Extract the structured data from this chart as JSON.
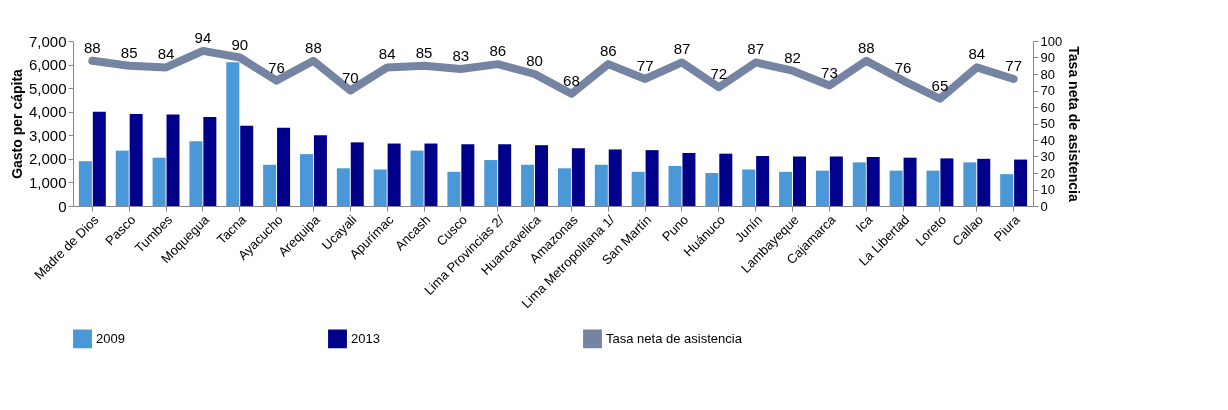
{
  "chart_data": {
    "type": "bar",
    "categories": [
      "Madre de Dios",
      "Pasco",
      "Tumbes",
      "Moquegua",
      "Tacna",
      "Ayacucho",
      "Arequipa",
      "Ucayali",
      "Apurímac",
      "Ancash",
      "Cusco",
      "Lima Provincias 2/",
      "Huancavelica",
      "Amazonas",
      "Lima Metropolitana 1/",
      "San Martín",
      "Puno",
      "Huánuco",
      "Junín",
      "Lambayeque",
      "Cajamarca",
      "Ica",
      "La Libertad",
      "Loreto",
      "Callao",
      "Piura"
    ],
    "ylabel": "Gasto per cápita",
    "y2label": "Tasa neta de asistencia",
    "ylim": [
      0,
      7000
    ],
    "yticks": [
      0,
      {
        "value": 1000,
        "label": "1,000"
      },
      {
        "value": 2000,
        "label": "2,000"
      },
      {
        "value": 3000,
        "label": "3,000"
      },
      {
        "value": 4000,
        "label": "4,000"
      },
      {
        "value": 5000,
        "label": "5,000"
      },
      {
        "value": 6000,
        "label": "6,000"
      },
      {
        "value": 7000,
        "label": "7,000"
      }
    ],
    "y2lim": [
      0,
      100
    ],
    "y2ticks": [
      0,
      10,
      20,
      30,
      40,
      50,
      60,
      70,
      80,
      90,
      100
    ],
    "grid": false,
    "legend": "bottom",
    "series": [
      {
        "name": "2009",
        "color": "#4a98d8",
        "values": [
          1900,
          2350,
          2050,
          2750,
          6100,
          1750,
          2200,
          1600,
          1550,
          2350,
          1450,
          1950,
          1750,
          1600,
          1750,
          1450,
          1700,
          1400,
          1550,
          1450,
          1500,
          1850,
          1500,
          1500,
          1850,
          1350
        ]
      },
      {
        "name": "2013",
        "color": "#00008b",
        "values": [
          4000,
          3900,
          3880,
          3780,
          3400,
          3320,
          3000,
          2700,
          2650,
          2650,
          2620,
          2620,
          2580,
          2450,
          2400,
          2370,
          2250,
          2220,
          2120,
          2100,
          2100,
          2080,
          2050,
          2020,
          2000,
          1970
        ]
      },
      {
        "name": "Tasa neta de asistencia",
        "type": "line",
        "axis": "y2",
        "color": "#7584a3",
        "data_labels": true,
        "values": [
          88,
          85,
          84,
          94,
          90,
          76,
          88,
          70,
          84,
          85,
          83,
          86,
          80,
          68,
          86,
          77,
          87,
          72,
          87,
          82,
          73,
          88,
          76,
          65,
          84,
          77
        ]
      }
    ]
  }
}
